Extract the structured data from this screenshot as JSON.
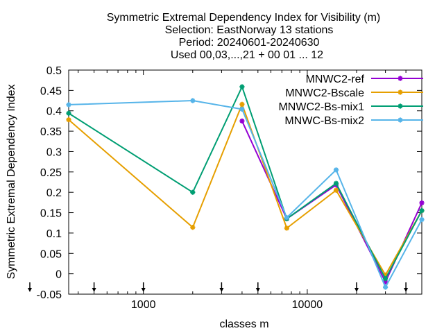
{
  "chart_data": {
    "type": "line",
    "title_lines": [
      "Symmetric Extremal Dependency Index  for Visibility (m)",
      "Selection: EastNorway     13 stations",
      "Period: 20240601-20240630",
      "Used 00,03,...,21 + 00 01 ... 12"
    ],
    "xlabel": "classes m",
    "ylabel": "Symmetric Extremal Dependency Index",
    "x_scale": "log",
    "xlim": [
      350,
      50000
    ],
    "ylim": [
      -0.05,
      0.5
    ],
    "yticks": [
      -0.05,
      0,
      0.05,
      0.1,
      0.15,
      0.2,
      0.25,
      0.3,
      0.35,
      0.4,
      0.45,
      0.5
    ],
    "ytick_labels": [
      "-0.05",
      "0",
      "0.05",
      "0.1",
      "0.15",
      "0.2",
      "0.25",
      "0.3",
      "0.35",
      "0.4",
      "0.45",
      "0.5"
    ],
    "xticks_major": [
      1000,
      10000
    ],
    "xtick_labels": [
      "1000",
      "10000"
    ],
    "class_markers": [
      350,
      500,
      1000,
      3000,
      5000,
      20000,
      40000
    ],
    "legend_position": "top-right",
    "series": [
      {
        "name": "MNWC2-ref",
        "color": "#9400d3",
        "marker": "star",
        "points": [
          [
            4000,
            0.375
          ],
          [
            7500,
            0.135
          ],
          [
            15000,
            0.218
          ],
          [
            30000,
            -0.02
          ],
          [
            50000,
            0.174
          ]
        ]
      },
      {
        "name": "MNWC2-Bscale",
        "color": "#e69f00",
        "marker": "star",
        "points": [
          [
            350,
            0.378
          ],
          [
            2000,
            0.114
          ],
          [
            4000,
            0.416
          ],
          [
            7500,
            0.112
          ],
          [
            15000,
            0.205
          ],
          [
            30000,
            -0.003
          ],
          [
            50000,
            0.155
          ]
        ]
      },
      {
        "name": "MNWC2-Bs-mix1",
        "color": "#009e73",
        "marker": "star",
        "points": [
          [
            350,
            0.394
          ],
          [
            2000,
            0.2
          ],
          [
            4000,
            0.459
          ],
          [
            7500,
            0.135
          ],
          [
            15000,
            0.222
          ],
          [
            30000,
            -0.012
          ],
          [
            50000,
            0.155
          ]
        ]
      },
      {
        "name": "MNWC-Bs-mix2",
        "color": "#56b4e9",
        "marker": "star",
        "points": [
          [
            350,
            0.415
          ],
          [
            2000,
            0.425
          ],
          [
            4000,
            0.404
          ],
          [
            7500,
            0.138
          ],
          [
            15000,
            0.255
          ],
          [
            30000,
            -0.033
          ],
          [
            50000,
            0.133
          ]
        ]
      }
    ]
  }
}
